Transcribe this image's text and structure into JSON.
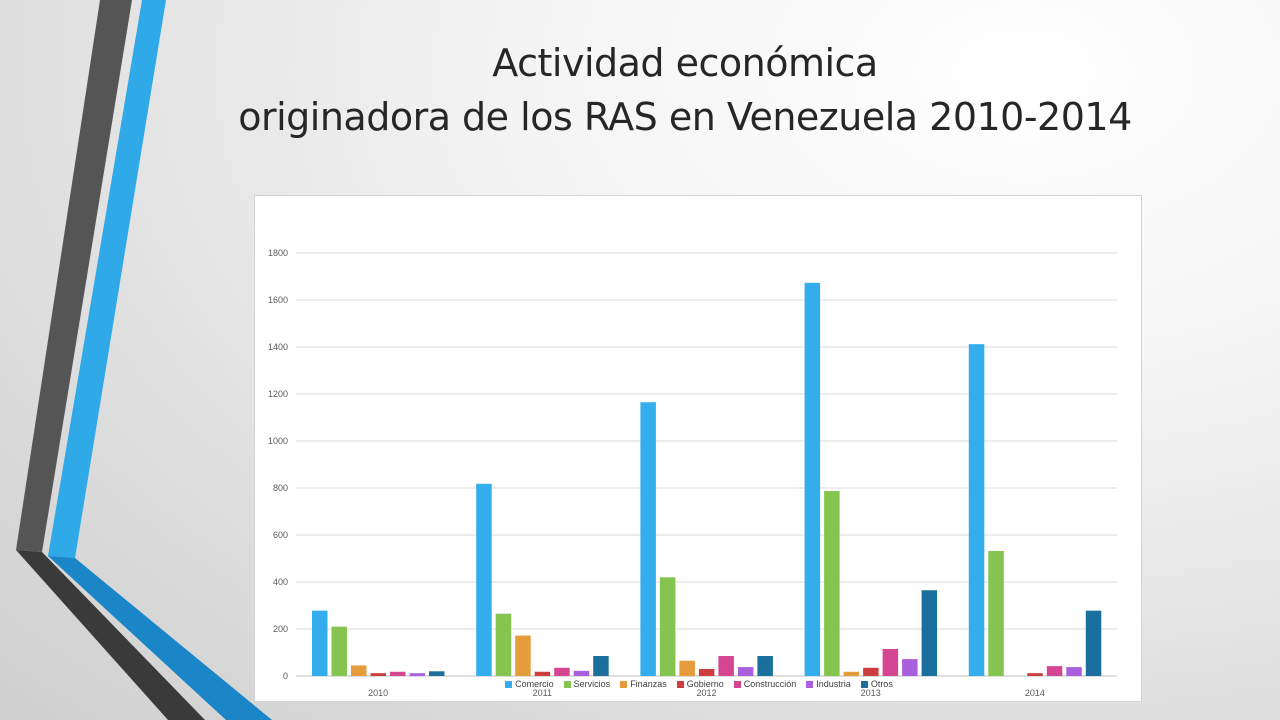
{
  "slide": {
    "title_line1": "Actividad económica",
    "title_line2": "originadora de los RAS en Venezuela 2010-2014"
  },
  "colors": {
    "stripe_dark": "#555555",
    "stripe_blue": "#2fa9e8",
    "stripe_black": "#3a3a3a",
    "stripe_blue_dark": "#1a86c8"
  },
  "chart_data": {
    "type": "bar",
    "categories": [
      "2010",
      "2011",
      "2012",
      "2013",
      "2014"
    ],
    "ylim": [
      0,
      1800
    ],
    "yticks": [
      0,
      200,
      400,
      600,
      800,
      1000,
      1200,
      1400,
      1600,
      1800
    ],
    "grid": true,
    "legend_position": "bottom",
    "series": [
      {
        "name": "Comercio",
        "color": "#33adec",
        "values": [
          278,
          818,
          1165,
          1673,
          1412
        ]
      },
      {
        "name": "Servicios",
        "color": "#86c450",
        "values": [
          210,
          265,
          420,
          787,
          532
        ]
      },
      {
        "name": "Finanzas",
        "color": "#e69b3c",
        "values": [
          45,
          172,
          65,
          18,
          0
        ]
      },
      {
        "name": "Gobierno",
        "color": "#cc3d3d",
        "values": [
          12,
          18,
          30,
          35,
          12
        ]
      },
      {
        "name": "Construcción",
        "color": "#d44692",
        "values": [
          18,
          35,
          85,
          115,
          42
        ]
      },
      {
        "name": "Industria",
        "color": "#a960dc",
        "values": [
          12,
          22,
          38,
          72,
          38
        ]
      },
      {
        "name": "Otros",
        "color": "#1a6f9c",
        "values": [
          20,
          85,
          85,
          365,
          278
        ]
      }
    ]
  }
}
